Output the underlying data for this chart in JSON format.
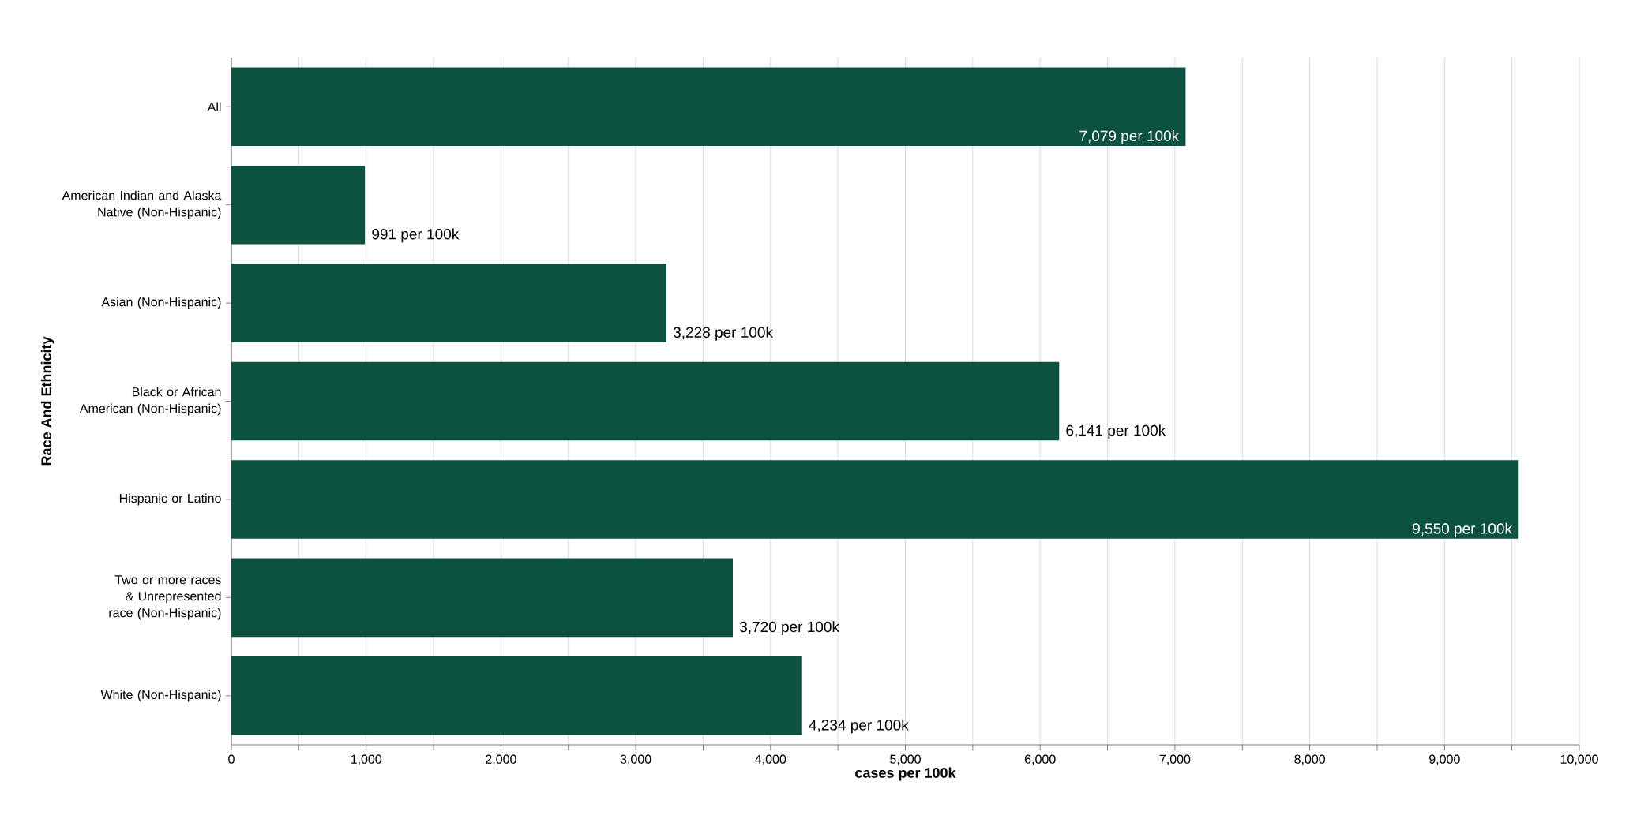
{
  "chart_data": {
    "type": "bar",
    "orientation": "horizontal",
    "xlabel": "cases per 100k",
    "ylabel": "Race And Ethnicity",
    "categories": [
      "All",
      "American Indian and Alaska Native (Non-Hispanic)",
      "Asian (Non-Hispanic)",
      "Black or African American (Non-Hispanic)",
      "Hispanic or Latino",
      "Two or more races & Unrepresented race (Non-Hispanic)",
      "White (Non-Hispanic)"
    ],
    "values": [
      7079,
      991,
      3228,
      6141,
      9550,
      3720,
      4234
    ],
    "value_labels": [
      "7,079 per 100k",
      "991 per 100k",
      "3,228 per 100k",
      "6,141 per 100k",
      "9,550 per 100k",
      "3,720 per 100k",
      "4,234 per 100k"
    ],
    "color": "#0d5241",
    "xlim": [
      0,
      10000
    ],
    "xticks": [
      0,
      {
        "value": 500,
        "label": null
      },
      {
        "value": 1000,
        "label": "1,000"
      },
      {
        "value": 1500,
        "label": null
      },
      {
        "value": 2000,
        "label": "2,000"
      },
      {
        "value": 2500,
        "label": null
      },
      {
        "value": 3000,
        "label": "3,000"
      },
      {
        "value": 3500,
        "label": null
      },
      {
        "value": 4000,
        "label": "4,000"
      },
      {
        "value": 4500,
        "label": null
      },
      {
        "value": 5000,
        "label": "5,000"
      },
      {
        "value": 5500,
        "label": null
      },
      {
        "value": 6000,
        "label": "6,000"
      },
      {
        "value": 6500,
        "label": null
      },
      {
        "value": 7000,
        "label": "7,000"
      },
      {
        "value": 7500,
        "label": null
      },
      {
        "value": 8000,
        "label": "8,000"
      },
      {
        "value": 8500,
        "label": null
      },
      {
        "value": 9000,
        "label": "9,000"
      },
      {
        "value": 9500,
        "label": null
      },
      {
        "value": 10000,
        "label": "10,000"
      }
    ],
    "grid": "x"
  }
}
